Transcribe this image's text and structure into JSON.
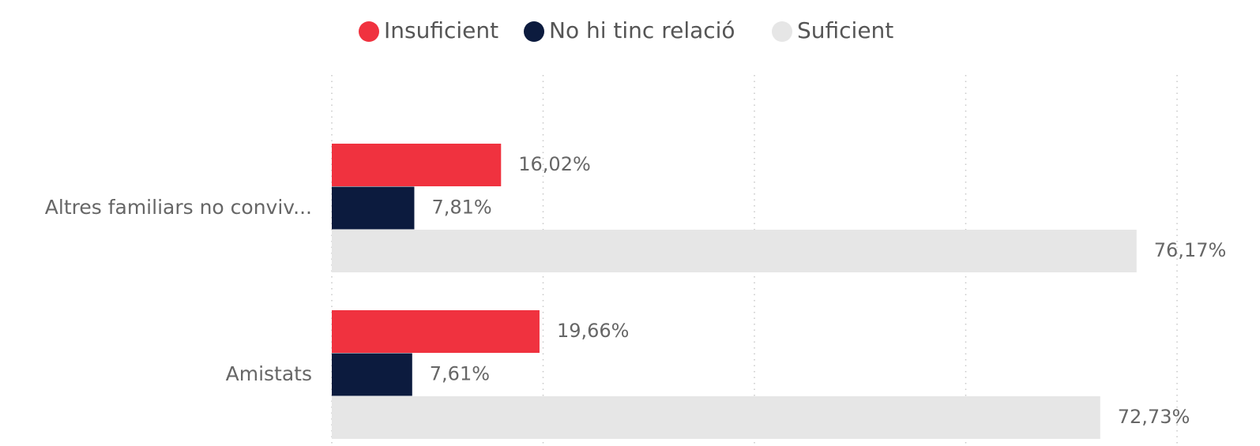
{
  "chart_data": {
    "type": "hbar",
    "categories": [
      "Altres familiars no conviv...",
      "Amistats"
    ],
    "series": [
      {
        "name": "Insuficient",
        "color": "#f0323f",
        "values": [
          16.02,
          19.66
        ],
        "value_labels": [
          "16,02%",
          "19,66%"
        ]
      },
      {
        "name": "No hi tinc relació",
        "color": "#0c1b3e",
        "values": [
          7.81,
          7.61
        ],
        "value_labels": [
          "7,81%",
          "7,61%"
        ]
      },
      {
        "name": "Suficient",
        "color": "#e6e6e6",
        "values": [
          76.17,
          72.73
        ],
        "value_labels": [
          "76,17%",
          "72,73%"
        ]
      }
    ],
    "xlim": [
      0,
      80
    ],
    "xticks": [
      0,
      20,
      40,
      60,
      80
    ],
    "grid": true,
    "legend": "top"
  }
}
